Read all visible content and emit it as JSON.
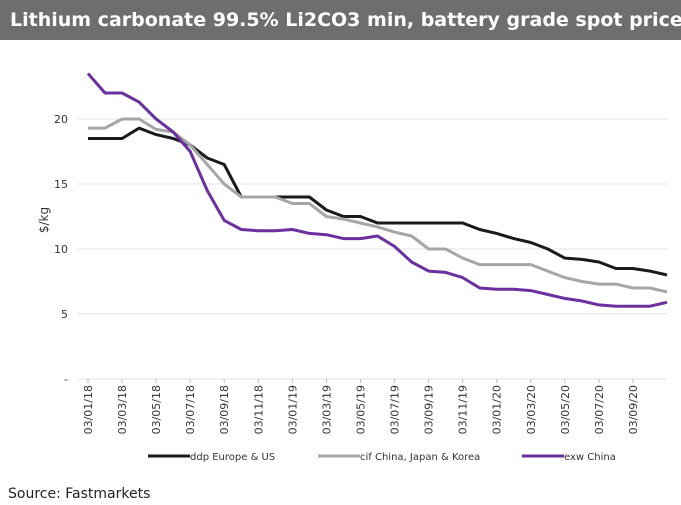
{
  "chart_data": {
    "type": "line",
    "title": "Lithium carbonate 99.5% Li2CO3 min, battery grade spot prices",
    "y_label": "$/kg",
    "source": "Source: Fastmarkets",
    "x": [
      "03/01/18",
      "03/02/18",
      "03/03/18",
      "03/04/18",
      "03/05/18",
      "03/06/18",
      "03/07/18",
      "03/08/18",
      "03/09/18",
      "03/10/18",
      "03/11/18",
      "03/12/18",
      "03/01/19",
      "03/02/19",
      "03/03/19",
      "03/04/19",
      "03/05/19",
      "03/06/19",
      "03/07/19",
      "03/08/19",
      "03/09/19",
      "03/10/19",
      "03/11/19",
      "03/12/19",
      "03/01/20",
      "03/02/20",
      "03/03/20",
      "03/04/20",
      "03/05/20",
      "03/06/20",
      "03/07/20",
      "03/08/20",
      "03/09/20",
      "03/10/20",
      "03/11/20"
    ],
    "xticks": [
      "03/01/18",
      "03/03/18",
      "03/05/18",
      "03/07/18",
      "03/09/18",
      "03/11/18",
      "03/01/19",
      "03/03/19",
      "03/05/19",
      "03/07/19",
      "03/09/19",
      "03/11/19",
      "03/01/20",
      "03/03/20",
      "03/05/20",
      "03/07/20",
      "03/09/20"
    ],
    "ylim": [
      0,
      25
    ],
    "yticks": [
      {
        "value": 0,
        "label": "-"
      },
      5,
      10,
      15,
      20
    ],
    "grid": true,
    "legend": "bottom",
    "series": [
      {
        "name": "ddp Europe & US",
        "color": "#1a1a1a",
        "values": [
          18.5,
          18.5,
          18.5,
          19.3,
          18.8,
          18.5,
          18.0,
          17.0,
          16.5,
          14.0,
          14.0,
          14.0,
          14.0,
          14.0,
          13.0,
          12.5,
          12.5,
          12.0,
          12.0,
          12.0,
          12.0,
          12.0,
          12.0,
          11.5,
          11.2,
          10.8,
          10.5,
          10.0,
          9.3,
          9.2,
          9.0,
          8.5,
          8.5,
          8.3,
          8.0
        ]
      },
      {
        "name": "cif China, Japan & Korea",
        "color": "#a6a6a6",
        "values": [
          19.3,
          19.3,
          20.0,
          20.0,
          19.2,
          19.0,
          18.0,
          16.5,
          15.0,
          14.0,
          14.0,
          14.0,
          13.5,
          13.5,
          12.5,
          12.3,
          12.0,
          11.7,
          11.3,
          11.0,
          10.0,
          10.0,
          9.3,
          8.8,
          8.8,
          8.8,
          8.8,
          8.3,
          7.8,
          7.5,
          7.3,
          7.3,
          7.0,
          7.0,
          6.7
        ]
      },
      {
        "name": "exw China",
        "color": "#6b2fa0",
        "values": [
          23.5,
          22.0,
          22.0,
          21.3,
          20.0,
          19.0,
          17.5,
          14.5,
          12.2,
          11.5,
          11.4,
          11.4,
          11.5,
          11.2,
          11.1,
          10.8,
          10.8,
          11.0,
          10.2,
          9.0,
          8.3,
          8.2,
          7.8,
          7.0,
          6.9,
          6.9,
          6.8,
          6.5,
          6.2,
          6.0,
          5.7,
          5.6,
          5.6,
          5.6,
          5.9
        ]
      }
    ]
  }
}
